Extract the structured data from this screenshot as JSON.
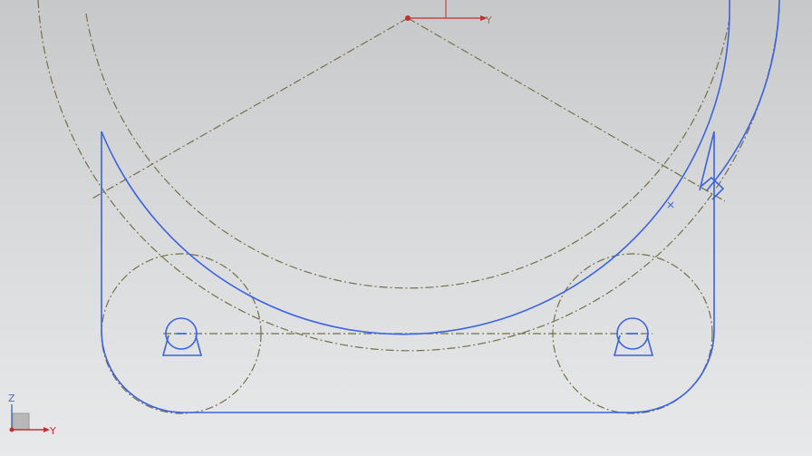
{
  "app": {
    "view": "sketch-canvas"
  },
  "colors": {
    "background_top": "#c7c8c9",
    "background_bottom": "#e8e9ea",
    "geometry": "#3c63e0",
    "construction": "#74704c",
    "axis_x": "#c03030",
    "axis_z": "#4a6fb0"
  },
  "work_csys": {
    "y_label": "Y"
  },
  "view_triad": {
    "z_label": "Z",
    "y_label": "Y"
  }
}
